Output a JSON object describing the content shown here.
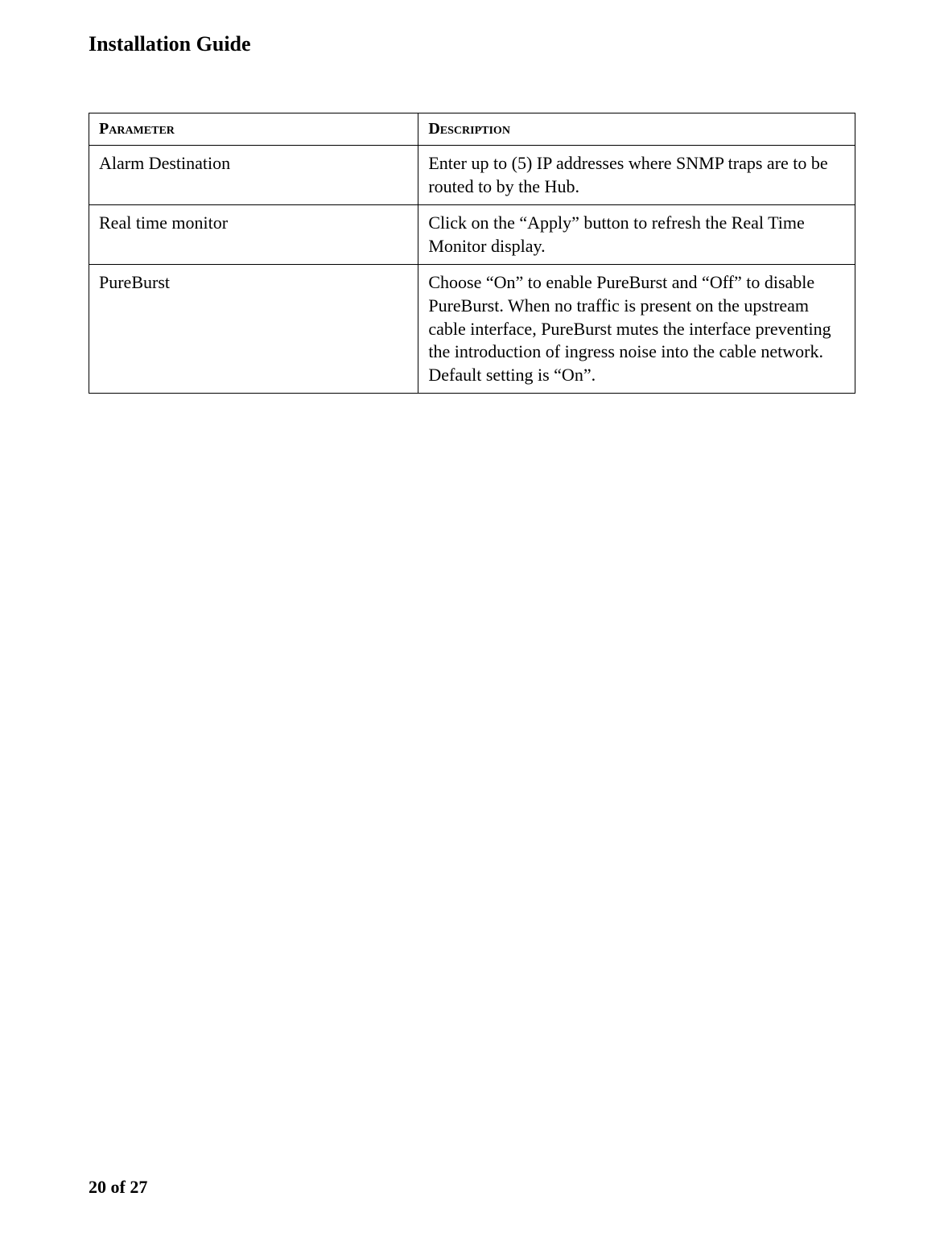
{
  "header": {
    "title": "Installation Guide"
  },
  "table": {
    "headers": {
      "parameter": "Parameter",
      "description": "Description"
    },
    "rows": [
      {
        "parameter": "Alarm Destination",
        "description": "Enter up to (5) IP addresses where SNMP traps are to be routed to by the Hub."
      },
      {
        "parameter": "Real time monitor",
        "description": "Click on the “Apply” button to refresh the Real Time Monitor display."
      },
      {
        "parameter": "PureBurst",
        "description": "Choose “On” to enable PureBurst and “Off” to disable PureBurst. When no traffic is present on the upstream cable interface, PureBurst mutes the interface preventing the introduction of ingress noise into the cable network. Default setting is “On”."
      }
    ]
  },
  "footer": {
    "page_number": "20 of 27"
  }
}
